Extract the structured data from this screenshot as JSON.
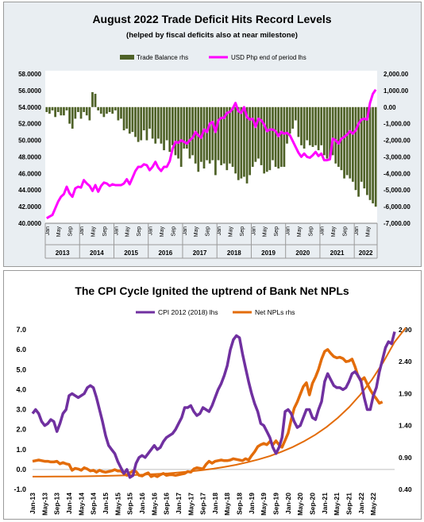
{
  "chart_data": [
    {
      "type": "bar+line",
      "title": "August 2022 Trade Deficit Hits Record Levels",
      "subtitle": "(helped by fiscal deficits also at near milestone)",
      "legend": {
        "placement": "top",
        "bar_label": "Trade Balance rhs",
        "line_label": "USD Php end of period lhs"
      },
      "colors": {
        "bar": "#4f6228",
        "line": "#ff00ff"
      },
      "ylim_left": [
        40,
        58
      ],
      "ylim_right": [
        -7000,
        2000
      ],
      "y_ticks_left": [
        "40.0000",
        "42.0000",
        "44.0000",
        "46.0000",
        "48.0000",
        "50.0000",
        "52.0000",
        "54.0000",
        "56.0000",
        "58.0000"
      ],
      "y_ticks_right": [
        "-7,000.00",
        "-6,000.00",
        "-5,000.00",
        "-4,000.00",
        "-3,000.00",
        "-2,000.00",
        "-1,000.00",
        "0.00",
        "1,000.00",
        "2,000.00"
      ],
      "month_ticks": [
        "Jan",
        "May",
        "Sep",
        "Jan",
        "May",
        "Sep",
        "Jan",
        "May",
        "Sep",
        "Jan",
        "May",
        "Sep",
        "Jan",
        "May",
        "Sep",
        "Jan",
        "May",
        "Sep",
        "Jan",
        "May",
        "Sep",
        "Jan",
        "May",
        "Sep",
        "Jan",
        "May",
        "Sep",
        "Jan",
        "May"
      ],
      "year_labels": [
        "2013",
        "2014",
        "2015",
        "2016",
        "2017",
        "2018",
        "2019",
        "2020",
        "2021",
        "2022"
      ],
      "start": "2013-01",
      "series": [
        {
          "name": "USD Php end of period lhs",
          "axis": "left",
          "values": [
            40.6,
            40.8,
            41.0,
            41.8,
            42.6,
            43.2,
            43.5,
            44.4,
            43.6,
            43.2,
            44.2,
            44.4,
            44.3,
            45.2,
            44.8,
            44.5,
            43.9,
            44.6,
            43.8,
            44.5,
            44.9,
            44.8,
            44.5,
            44.7,
            44.6,
            44.6,
            44.6,
            44.8,
            45.3,
            44.7,
            45.5,
            46.3,
            46.8,
            46.8,
            47.1,
            47.0,
            46.4,
            46.8,
            47.4,
            46.7,
            46.3,
            46.8,
            46.8,
            47.5,
            49.0,
            49.8,
            49.7,
            50.0,
            49.8,
            49.6,
            50.0,
            50.3,
            51.0,
            50.6,
            50.3,
            51.3,
            51.0,
            52.0,
            52.2,
            51.0,
            52.4,
            52.7,
            52.7,
            53.3,
            53.4,
            53.8,
            54.5,
            53.5,
            53.3,
            54.0,
            52.8,
            52.5,
            52.6,
            51.6,
            52.6,
            52.4,
            51.9,
            51.1,
            51.3,
            51.3,
            51.1,
            50.5,
            51.0,
            50.8,
            50.9,
            50.6,
            49.9,
            49.2,
            48.5,
            48.0,
            48.4,
            48.0,
            47.9,
            48.2,
            48.6,
            48.1,
            48.4,
            47.6,
            47.6,
            47.7,
            50.2,
            50.0,
            49.6,
            50.2,
            50.4,
            50.7,
            51.1,
            50.8,
            51.2,
            52.0,
            52.5,
            52.6,
            52.5,
            54.5,
            55.6,
            56.1
          ]
        },
        {
          "name": "Trade Balance rhs",
          "axis": "right",
          "values": [
            -300,
            -400,
            -200,
            -600,
            -300,
            -500,
            -500,
            -200,
            -1000,
            -1300,
            -700,
            -300,
            -700,
            -300,
            -500,
            -800,
            900,
            800,
            -200,
            -400,
            -600,
            -400,
            -300,
            -400,
            -200,
            -800,
            -700,
            -1400,
            -1300,
            -1600,
            -1500,
            -1800,
            -2100,
            -2000,
            -1400,
            -2000,
            -1300,
            -1900,
            -2200,
            -1900,
            -2200,
            -2600,
            -2000,
            -2700,
            -2300,
            -2900,
            -3100,
            -3600,
            -2500,
            -2500,
            -3100,
            -2900,
            -3400,
            -3900,
            -3300,
            -3700,
            -3200,
            -3400,
            -3200,
            -4100,
            -3200,
            -3500,
            -3400,
            -3800,
            -3400,
            -3600,
            -4000,
            -4400,
            -4300,
            -4200,
            -4600,
            -4100,
            -3600,
            -3300,
            -3100,
            -3500,
            -4000,
            -3900,
            -3800,
            -3200,
            -3600,
            -3700,
            -3600,
            -3600,
            -2200,
            -1600,
            -1300,
            -800,
            -1800,
            -2300,
            -2500,
            -2000,
            -2300,
            -2400,
            -2300,
            -2600,
            -2300,
            -2900,
            -3100,
            -3000,
            -2900,
            -3400,
            -3600,
            -3800,
            -4300,
            -4100,
            -4300,
            -4500,
            -5000,
            -5400,
            -4500,
            -4900,
            -5300,
            -5600,
            -5800,
            -6000
          ]
        }
      ]
    },
    {
      "type": "line",
      "title": "The CPI Cycle Ignited the uptrend of Bank Net NPLs",
      "legend": {
        "placement": "top"
      },
      "colors": {
        "cpi": "#7030a0",
        "npl": "#e36c09",
        "npl_thin": "#f4b183"
      },
      "ylim_left": [
        -1.0,
        7.0
      ],
      "ylim_right": [
        0.4,
        2.9
      ],
      "y_ticks_left": [
        "-1.0",
        "0.0",
        "1.0",
        "2.0",
        "3.0",
        "4.0",
        "5.0",
        "6.0",
        "7.0"
      ],
      "y_ticks_right": [
        "0.40",
        "0.90",
        "1.40",
        "1.90",
        "2.40",
        "2.90"
      ],
      "x_ticks": [
        "Jan-13",
        "May-13",
        "Sep-13",
        "Jan-14",
        "May-14",
        "Sep-14",
        "Jan-15",
        "May-15",
        "Sep-15",
        "Jan-16",
        "May-16",
        "Sep-16",
        "Jan-17",
        "May-17",
        "Sep-17",
        "Jan-18",
        "May-18",
        "Sep-18",
        "Jan-19",
        "May-19",
        "Sep-19",
        "Jan-20",
        "May-20",
        "Sep-20",
        "Jan-21",
        "May-21",
        "Sep-21",
        "Jan-22",
        "May-22"
      ],
      "start": "2013-01",
      "series": [
        {
          "name": "CPI 2012 (2018) lhs",
          "axis": "left",
          "values": [
            2.8,
            3.0,
            2.8,
            2.4,
            2.2,
            2.3,
            2.5,
            2.4,
            1.9,
            2.3,
            2.8,
            3.0,
            3.7,
            3.8,
            3.7,
            3.6,
            3.7,
            3.8,
            4.1,
            4.2,
            4.1,
            3.6,
            3.0,
            2.4,
            1.7,
            1.2,
            1.0,
            0.8,
            0.4,
            0.1,
            -0.2,
            0.0,
            -0.4,
            -0.3,
            0.3,
            0.6,
            0.7,
            0.6,
            0.8,
            1.0,
            1.2,
            1.0,
            1.1,
            1.4,
            1.6,
            1.7,
            1.8,
            2.0,
            2.3,
            2.6,
            3.1,
            3.1,
            3.2,
            2.9,
            2.7,
            2.8,
            3.1,
            3.0,
            2.9,
            3.2,
            3.6,
            4.0,
            4.3,
            4.7,
            5.2,
            6.0,
            6.5,
            6.7,
            6.6,
            5.8,
            5.1,
            4.4,
            3.8,
            3.3,
            2.9,
            2.3,
            2.2,
            1.9,
            1.6,
            1.1,
            0.8,
            1.1,
            1.6,
            2.9,
            3.0,
            2.8,
            2.4,
            2.1,
            2.2,
            2.6,
            3.0,
            3.0,
            2.6,
            2.5,
            3.0,
            3.4,
            4.4,
            4.8,
            4.5,
            4.2,
            4.1,
            4.1,
            4.0,
            4.1,
            4.4,
            4.8,
            4.9,
            4.7,
            4.4,
            3.6,
            3.0,
            3.0,
            3.7,
            4.1,
            4.9,
            5.5,
            6.1,
            6.4,
            6.3,
            6.9
          ]
        },
        {
          "name": "Net NPLs rhs",
          "axis": "right",
          "values": [
            0.84,
            0.85,
            0.86,
            0.85,
            0.84,
            0.84,
            0.83,
            0.83,
            0.84,
            0.8,
            0.82,
            0.8,
            0.79,
            0.7,
            0.73,
            0.72,
            0.7,
            0.74,
            0.72,
            0.69,
            0.7,
            0.67,
            0.7,
            0.68,
            0.67,
            0.68,
            0.69,
            0.71,
            0.69,
            0.69,
            0.65,
            0.62,
            0.66,
            0.69,
            0.68,
            0.62,
            0.61,
            0.64,
            0.66,
            0.6,
            0.62,
            0.6,
            0.63,
            0.65,
            0.62,
            0.63,
            0.63,
            0.62,
            0.63,
            0.64,
            0.65,
            0.68,
            0.67,
            0.72,
            0.74,
            0.73,
            0.72,
            0.79,
            0.84,
            0.81,
            0.84,
            0.85,
            0.86,
            0.85,
            0.85,
            0.86,
            0.88,
            0.87,
            0.86,
            0.85,
            0.88,
            0.86,
            0.93,
            0.99,
            1.07,
            1.1,
            1.12,
            1.1,
            1.15,
            1.1,
            1.16,
            1.1,
            1.06,
            1.17,
            1.28,
            1.49,
            1.67,
            1.77,
            1.89,
            2.01,
            2.07,
            1.88,
            2.06,
            2.16,
            2.28,
            2.44,
            2.56,
            2.59,
            2.53,
            2.48,
            2.46,
            2.47,
            2.45,
            2.4,
            2.41,
            2.44,
            2.32,
            2.17,
            2.11,
            2.15,
            2.05,
            1.96,
            1.88,
            1.82,
            1.75,
            1.77
          ]
        }
      ],
      "thin_line_name": "Net NPLs rhs",
      "thin_line_values": [
        0.6,
        0.6,
        0.601,
        0.602,
        0.604,
        0.607,
        0.61,
        0.614,
        0.619,
        0.625,
        0.633,
        0.642,
        0.653,
        0.667,
        0.683,
        0.702,
        0.725,
        0.753,
        0.786,
        0.825,
        0.87,
        0.924,
        0.988,
        1.063,
        1.152,
        1.256,
        1.378,
        1.521,
        1.689,
        1.886,
        2.117,
        2.388,
        2.705,
        2.93
      ]
    }
  ]
}
